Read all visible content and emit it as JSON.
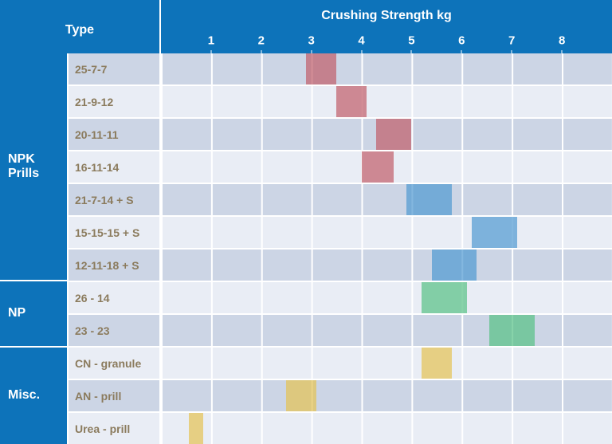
{
  "header": {
    "type_label": "Type",
    "title": "Crushing Strength kg"
  },
  "colors": {
    "header_blue": "#0d73ba",
    "row_dark": "#ccd5e5",
    "row_light": "#e9edf5",
    "label_brown": "#8b7b5d",
    "bar_red": "#c15c6a",
    "bar_blue": "#4e98d2",
    "bar_green": "#55c085",
    "bar_yellow": "#e4c252"
  },
  "chart_data": {
    "type": "bar",
    "subtype": "horizontal-range-bars",
    "title": "Crushing Strength kg",
    "xlabel": "Crushing Strength kg",
    "ylabel": "Type",
    "xlim": [
      0,
      9
    ],
    "x_ticks": [
      "1",
      "2",
      "3",
      "4",
      "5",
      "6",
      "7",
      "8"
    ],
    "grid": true,
    "groups": [
      {
        "label": "NPK Prills",
        "row_count": 7
      },
      {
        "label": "NP",
        "row_count": 2
      },
      {
        "label": "Misc.",
        "row_count": 3
      }
    ],
    "rows": [
      {
        "group": "NPK Prills",
        "label": "25-7-7",
        "range_kg": [
          2.9,
          3.5
        ],
        "color": "red"
      },
      {
        "group": "NPK Prills",
        "label": "21-9-12",
        "range_kg": [
          3.5,
          4.1
        ],
        "color": "red"
      },
      {
        "group": "NPK Prills",
        "label": "20-11-11",
        "range_kg": [
          4.3,
          5.0
        ],
        "color": "red"
      },
      {
        "group": "NPK Prills",
        "label": "16-11-14",
        "range_kg": [
          4.0,
          4.65
        ],
        "color": "red"
      },
      {
        "group": "NPK Prills",
        "label": "21-7-14 + S",
        "range_kg": [
          4.9,
          5.8
        ],
        "color": "blue"
      },
      {
        "group": "NPK Prills",
        "label": "15-15-15 + S",
        "range_kg": [
          6.2,
          7.1
        ],
        "color": "blue"
      },
      {
        "group": "NPK Prills",
        "label": "12-11-18 + S",
        "range_kg": [
          5.4,
          6.3
        ],
        "color": "blue"
      },
      {
        "group": "NP",
        "label": "26 - 14",
        "range_kg": [
          5.2,
          6.1
        ],
        "color": "green"
      },
      {
        "group": "NP",
        "label": "23 - 23",
        "range_kg": [
          6.55,
          7.45
        ],
        "color": "green"
      },
      {
        "group": "Misc.",
        "label": "CN - granule",
        "range_kg": [
          5.2,
          5.8
        ],
        "color": "yellow"
      },
      {
        "group": "Misc.",
        "label": "AN - prill",
        "range_kg": [
          2.5,
          3.1
        ],
        "color": "yellow"
      },
      {
        "group": "Misc.",
        "label": "Urea - prill",
        "range_kg": [
          0.55,
          0.85
        ],
        "color": "yellow"
      }
    ]
  }
}
